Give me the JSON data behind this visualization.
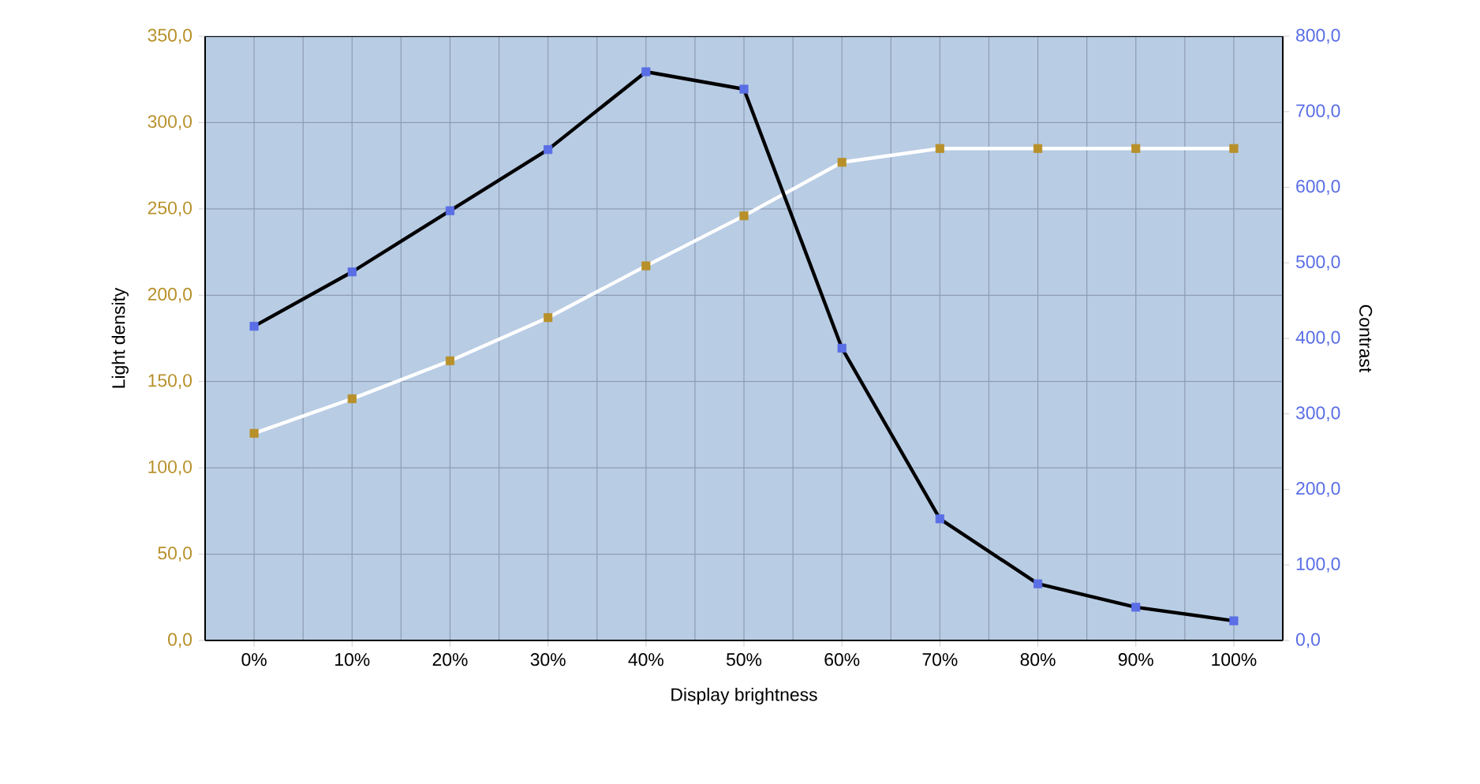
{
  "chart_data": {
    "type": "line",
    "categories": [
      "0%",
      "10%",
      "20%",
      "30%",
      "40%",
      "50%",
      "60%",
      "70%",
      "80%",
      "90%",
      "100%"
    ],
    "xlabel": "Display brightness",
    "ylabel": "Light density",
    "y2label": "Contrast",
    "series": [
      {
        "color": "#ffffff",
        "colors": [
          "#b8902a",
          "#b8902a",
          "#b8902a",
          "#b8902a",
          "#b8902a",
          "#b8902a",
          "#b8902a",
          "#b8902a",
          "#b8902a",
          "#b8902a",
          "#b8902a"
        ],
        "values": [
          120,
          140,
          162,
          187,
          217,
          246,
          277,
          285,
          285,
          285,
          285
        ]
      },
      {
        "color": "#000000",
        "axis": "y2",
        "colors": [
          "#5a6ee6",
          "#5a6ee6",
          "#5a6ee6",
          "#5a6ee6",
          "#5a6ee6",
          "#5a6ee6",
          "#5a6ee6",
          "#5a6ee6",
          "#5a6ee6",
          "#5a6ee6",
          "#5a6ee6"
        ],
        "values": [
          416,
          488,
          569,
          650,
          753,
          730,
          387,
          161,
          75,
          44,
          26
        ]
      }
    ],
    "ylim": [
      0,
      350
    ],
    "yticks": [
      {
        "value": 0,
        "label": "0,0"
      },
      {
        "value": 50,
        "label": "50,0"
      },
      {
        "value": 100,
        "label": "100,0"
      },
      {
        "value": 150,
        "label": "150,0"
      },
      {
        "value": 200,
        "label": "200,0"
      },
      {
        "value": 250,
        "label": "250,0"
      },
      {
        "value": 300,
        "label": "300,0"
      },
      {
        "value": 350,
        "label": "350,0"
      }
    ],
    "y2lim": [
      0,
      800
    ],
    "y2ticks": [
      {
        "value": 0,
        "label": "0,0"
      },
      {
        "value": 100,
        "label": "100,0"
      },
      {
        "value": 200,
        "label": "200,0"
      },
      {
        "value": 300,
        "label": "300,0"
      },
      {
        "value": 400,
        "label": "400,0"
      },
      {
        "value": 500,
        "label": "500,0"
      },
      {
        "value": 600,
        "label": "600,0"
      },
      {
        "value": 700,
        "label": "700,0"
      },
      {
        "value": 800,
        "label": "800,0"
      }
    ],
    "grid": true,
    "marker": "square",
    "line_style": "solid"
  }
}
